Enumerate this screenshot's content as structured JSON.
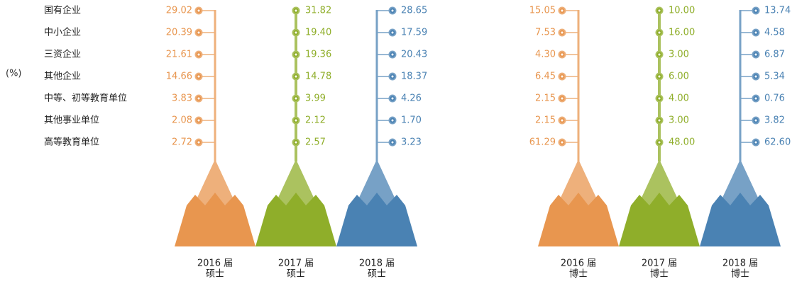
{
  "chart_data": {
    "type": "mountain",
    "unit": "(%)",
    "categories": [
      "国有企业",
      "中小企业",
      "三资企业",
      "其他企业",
      "中等、初等教育单位",
      "其他事业单位",
      "高等教育单位"
    ],
    "series": [
      {
        "name": "2016 届",
        "degree": "硕士",
        "color": "#e8964f",
        "values": [
          29.02,
          20.39,
          21.61,
          14.66,
          3.83,
          2.08,
          2.72
        ],
        "value_labels": [
          "29.02",
          "20.39",
          "21.61",
          "14.66",
          "3.83",
          "2.08",
          "2.72"
        ]
      },
      {
        "name": "2017 届",
        "degree": "硕士",
        "color": "#8fae2a",
        "values": [
          31.82,
          19.4,
          19.36,
          14.78,
          3.99,
          2.12,
          2.57
        ],
        "value_labels": [
          "31.82",
          "19.40",
          "19.36",
          "14.78",
          "3.99",
          "2.12",
          "2.57"
        ]
      },
      {
        "name": "2018 届",
        "degree": "硕士",
        "color": "#4a82b3",
        "values": [
          28.65,
          17.59,
          20.43,
          18.37,
          4.26,
          1.7,
          3.23
        ],
        "value_labels": [
          "28.65",
          "17.59",
          "20.43",
          "18.37",
          "4.26",
          "1.70",
          "3.23"
        ]
      },
      {
        "name": "2016 届",
        "degree": "博士",
        "color": "#e8964f",
        "values": [
          15.05,
          7.53,
          4.3,
          6.45,
          2.15,
          2.15,
          61.29
        ],
        "value_labels": [
          "15.05",
          "7.53",
          "4.30",
          "6.45",
          "2.15",
          "2.15",
          "61.29"
        ]
      },
      {
        "name": "2017 届",
        "degree": "博士",
        "color": "#8fae2a",
        "values": [
          10,
          16,
          3,
          6,
          4,
          3,
          48
        ],
        "value_labels": [
          "10.00",
          "16.00",
          "3.00",
          "6.00",
          "4.00",
          "3.00",
          "48.00"
        ]
      },
      {
        "name": "2018 届",
        "degree": "博士",
        "color": "#4a82b3",
        "values": [
          13.74,
          4.58,
          6.87,
          5.34,
          0.76,
          3.82,
          62.6
        ],
        "value_labels": [
          "13.74",
          "4.58",
          "6.87",
          "5.34",
          "0.76",
          "3.82",
          "62.60"
        ]
      }
    ]
  }
}
